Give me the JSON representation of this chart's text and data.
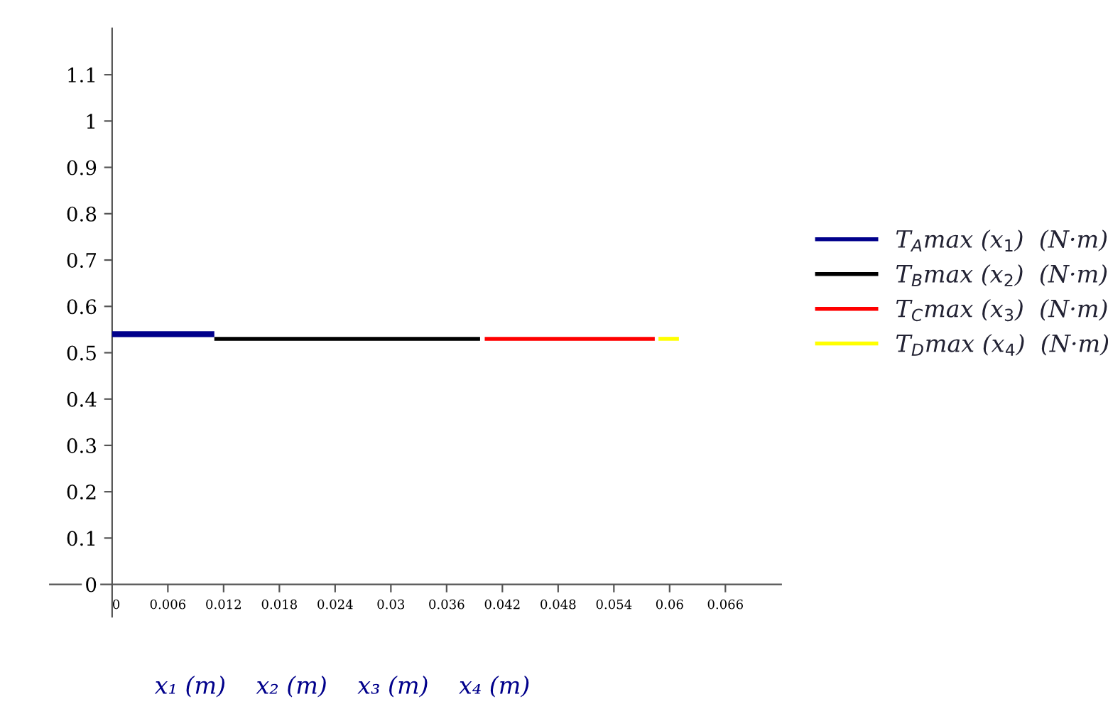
{
  "chart_data": {
    "type": "line",
    "xlabel": "x₁ (m)    x₂ (m)    x₃ (m)    x₄ (m)",
    "xlim": [
      -0.0067,
      0.072
    ],
    "ylim": [
      -0.07,
      1.2
    ],
    "xticks": [
      0,
      0.006,
      0.012,
      0.018,
      0.024,
      {
        "value": 0.03,
        "label": "0.03"
      },
      0.036,
      0.042,
      0.048,
      0.054,
      {
        "value": 0.06,
        "label": "0.06"
      },
      0.066
    ],
    "yticks": [
      0,
      0.1,
      0.2,
      0.3,
      0.4,
      0.5,
      0.6,
      0.7,
      0.8,
      0.9,
      1,
      1.1
    ],
    "series": [
      {
        "name": "T$_{A}$max (x$_{1}$)  (N·m)",
        "color": "#00008b",
        "x": [
          0,
          0.011
        ],
        "values": [
          0.54,
          0.54
        ]
      },
      {
        "name": "T$_{B}$max (x$_{2}$)  (N·m)",
        "color": "#000000",
        "x": [
          0.011,
          0.0396
        ],
        "values": [
          0.53,
          0.53
        ]
      },
      {
        "name": "T$_{C}$max (x$_{3}$)  (N·m)",
        "color": "#ff0000",
        "x": [
          0.0401,
          0.0584
        ],
        "values": [
          0.53,
          0.53
        ]
      },
      {
        "name": "T$_{D}$max (x$_{4}$)  (N·m)",
        "color": "#ffff00",
        "x": [
          0.0588,
          0.061
        ],
        "values": [
          0.53,
          0.53
        ]
      }
    ],
    "grid": false,
    "legend": "right",
    "marker": "none",
    "line_style": "solid"
  }
}
